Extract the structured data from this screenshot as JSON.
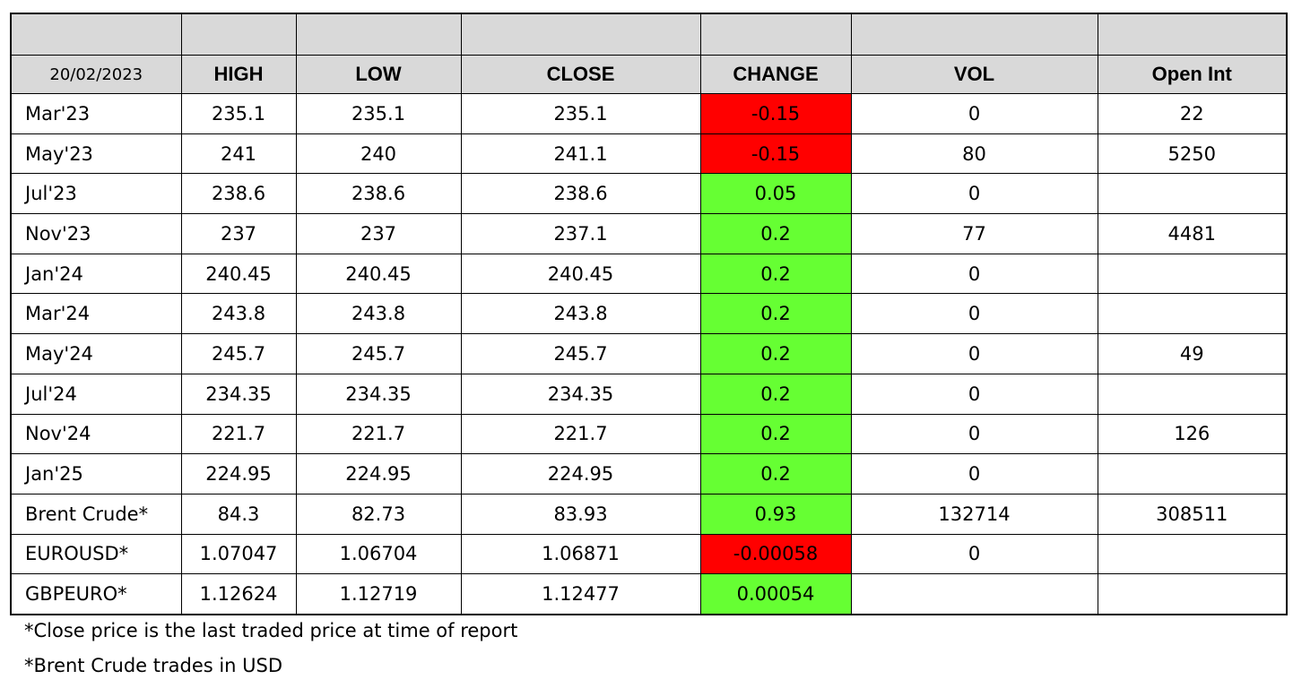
{
  "table": {
    "date": "20/02/2023",
    "columns": [
      "HIGH",
      "LOW",
      "CLOSE",
      "CHANGE",
      "VOL",
      "Open Int"
    ],
    "rows": [
      [
        "Mar'23",
        "235.1",
        "235.1",
        "235.1",
        "-0.15",
        "0",
        "22"
      ],
      [
        "May'23",
        "241",
        "240",
        "241.1",
        "-0.15",
        "80",
        "5250"
      ],
      [
        "Jul'23",
        "238.6",
        "238.6",
        "238.6",
        "0.05",
        "0",
        null
      ],
      [
        "Nov'23",
        "237",
        "237",
        "237.1",
        "0.2",
        "77",
        "4481"
      ],
      [
        "Jan'24",
        "240.45",
        "240.45",
        "240.45",
        "0.2",
        "0",
        null
      ],
      [
        "Mar'24",
        "243.8",
        "243.8",
        "243.8",
        "0.2",
        "0",
        null
      ],
      [
        "May'24",
        "245.7",
        "245.7",
        "245.7",
        "0.2",
        "0",
        "49"
      ],
      [
        "Jul'24",
        "234.35",
        "234.35",
        "234.35",
        "0.2",
        "0",
        null
      ],
      [
        "Nov'24",
        "221.7",
        "221.7",
        "221.7",
        "0.2",
        "0",
        "126"
      ],
      [
        "Jan'25",
        "224.95",
        "224.95",
        "224.95",
        "0.2",
        "0",
        null
      ],
      [
        "Brent Crude*",
        "84.3",
        "82.73",
        "83.93",
        "0.93",
        "132714",
        "308511"
      ],
      [
        "EUROUSD*",
        "1.07047",
        "1.06704",
        "1.06871",
        "-0.00058",
        "0",
        null
      ],
      [
        "GBPEURO*",
        "1.12624",
        "1.12719",
        "1.12477",
        "0.00054",
        null,
        null
      ]
    ],
    "change_colors": {
      "negative": "#ff0000",
      "positive": "#66ff33"
    }
  },
  "notes": [
    "*Close price is the last traded price at time of report",
    "*Brent Crude trades in USD"
  ]
}
